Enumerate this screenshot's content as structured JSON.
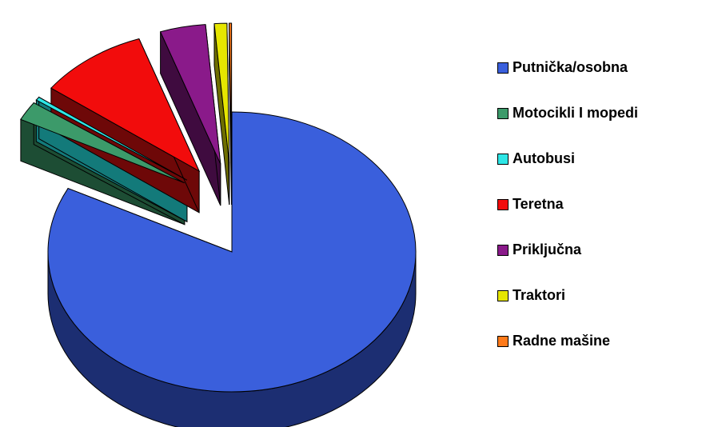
{
  "chart_data": {
    "type": "pie",
    "title": "",
    "three_d": true,
    "exploded": true,
    "legend_position": "right",
    "slices": [
      {
        "label": "Putnička/osobna",
        "value": 82.5,
        "color": "#3a5fdc",
        "shade": "#1c2e72"
      },
      {
        "label": "Motocikli I mopedi",
        "value": 2.2,
        "color": "#3c9a6a",
        "shade": "#1d4d34"
      },
      {
        "label": "Autobusi",
        "value": 0.4,
        "color": "#2ee6e6",
        "shade": "#137a7a"
      },
      {
        "label": "Teretna",
        "value": 9.6,
        "color": "#f20c0c",
        "shade": "#6e0808"
      },
      {
        "label": "Priključna",
        "value": 4.0,
        "color": "#8a1a8a",
        "shade": "#3f0b3f"
      },
      {
        "label": "Traktori",
        "value": 1.1,
        "color": "#e6e600",
        "shade": "#6e6e00"
      },
      {
        "label": "Radne mašine",
        "value": 0.2,
        "color": "#ff7a1a",
        "shade": "#7a3a0c"
      }
    ]
  }
}
